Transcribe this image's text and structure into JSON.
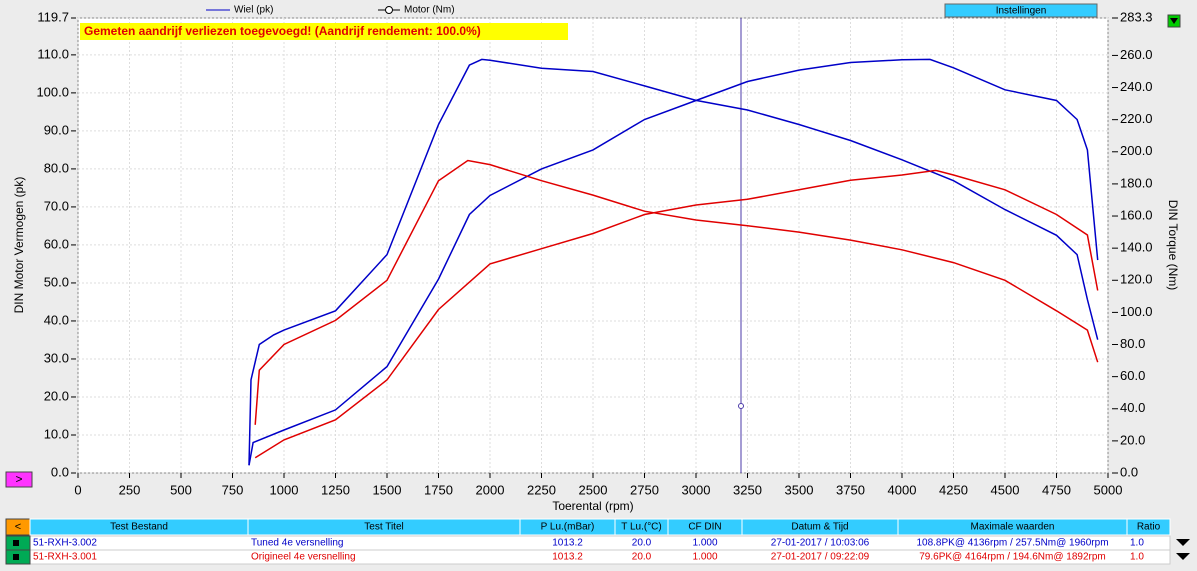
{
  "chart_data": {
    "type": "line",
    "annotation": "Gemeten aandrijf verliezen toegevoegd! (Aandrijf rendement: 100.0%)",
    "legend": [
      "Wiel (pk)",
      "Motor (Nm)"
    ],
    "xlabel": "Toerental (rpm)",
    "ylabel": "DIN Motor Vermogen (pk)",
    "y2label": "DIN Torque (Nm)",
    "xlim": [
      0,
      5000
    ],
    "ylim": [
      0,
      119.7
    ],
    "y2lim": [
      0,
      283.3
    ],
    "grid": true,
    "xticks": [
      0,
      250,
      500,
      750,
      1000,
      1250,
      1500,
      1750,
      2000,
      2250,
      2500,
      2750,
      3000,
      3250,
      3500,
      3750,
      4000,
      4250,
      4500,
      4750,
      5000
    ],
    "yticks": [
      {
        "value": 0,
        "label": "0.0"
      },
      {
        "value": 10,
        "label": "10.0"
      },
      {
        "value": 20,
        "label": "20.0"
      },
      {
        "value": 30,
        "label": "30.0"
      },
      {
        "value": 40,
        "label": "40.0"
      },
      {
        "value": 50,
        "label": "50.0"
      },
      {
        "value": 60,
        "label": "60.0"
      },
      {
        "value": 70,
        "label": "70.0"
      },
      {
        "value": 80,
        "label": "80.0"
      },
      {
        "value": 90,
        "label": "90.0"
      },
      {
        "value": 100,
        "label": "100.0"
      },
      {
        "value": 110,
        "label": "110.0"
      },
      119.7
    ],
    "y2ticks": [
      {
        "value": 0,
        "label": "0.0"
      },
      {
        "value": 20,
        "label": "20.0"
      },
      {
        "value": 40,
        "label": "40.0"
      },
      {
        "value": 60,
        "label": "60.0"
      },
      {
        "value": 80,
        "label": "80.0"
      },
      {
        "value": 100,
        "label": "100.0"
      },
      {
        "value": 120,
        "label": "120.0"
      },
      {
        "value": 140,
        "label": "140.0"
      },
      {
        "value": 160,
        "label": "160.0"
      },
      {
        "value": 180,
        "label": "180.0"
      },
      {
        "value": 200,
        "label": "200.0"
      },
      {
        "value": 220,
        "label": "220.0"
      },
      {
        "value": 240,
        "label": "240.0"
      },
      {
        "value": 260,
        "label": "260.0"
      },
      283.3
    ],
    "series": [
      {
        "color": "#0000c8",
        "x": [
          830,
          850,
          1000,
          1250,
          1500,
          1750,
          1900,
          2000,
          2250,
          2500,
          2750,
          3000,
          3250,
          3500,
          3750,
          4000,
          4136,
          4250,
          4500,
          4750,
          4850,
          4900,
          4950
        ],
        "values": [
          2,
          8,
          11.3,
          16.6,
          28,
          51,
          68,
          73,
          80,
          85,
          93,
          98,
          103,
          106,
          108,
          108.7,
          108.8,
          106.6,
          100.8,
          98,
          93,
          85,
          56
        ]
      },
      {
        "color": "#0000c8",
        "axis": "y2",
        "x": [
          830,
          840,
          880,
          950,
          1000,
          1250,
          1500,
          1750,
          1900,
          1960,
          2000,
          2250,
          2500,
          2750,
          3000,
          3250,
          3500,
          3750,
          4000,
          4250,
          4500,
          4750,
          4850,
          4900,
          4950
        ],
        "values": [
          5,
          58,
          80,
          86,
          89,
          101,
          136,
          217,
          254,
          257.5,
          257,
          252,
          250,
          241,
          232,
          226,
          217,
          207,
          195,
          182,
          164,
          148,
          136,
          108,
          83
        ]
      },
      {
        "color": "#e00000",
        "x": [
          860,
          1000,
          1250,
          1500,
          1750,
          2000,
          2250,
          2500,
          2750,
          3000,
          3250,
          3500,
          3750,
          4000,
          4164,
          4250,
          4500,
          4750,
          4900,
          4950
        ],
        "values": [
          4,
          8.7,
          14,
          24.5,
          43,
          55,
          59,
          63,
          68,
          70.5,
          72,
          74.5,
          77,
          78.4,
          79.6,
          78.4,
          74.5,
          68,
          62.6,
          48
        ]
      },
      {
        "color": "#e00000",
        "axis": "y2",
        "x": [
          860,
          880,
          1000,
          1250,
          1500,
          1750,
          1892,
          2000,
          2250,
          2500,
          2750,
          3000,
          3250,
          3500,
          3750,
          4000,
          4250,
          4500,
          4750,
          4900,
          4950
        ],
        "values": [
          30,
          64,
          80,
          95,
          120,
          182,
          194.6,
          192,
          182,
          173,
          163,
          157.5,
          154,
          150,
          145,
          139,
          131,
          120,
          101,
          89,
          69
        ]
      }
    ]
  },
  "settings_button": "Instellingen",
  "prev_button": ">",
  "table": {
    "toggle": "<",
    "header": [
      "Test Bestand",
      "Test Titel",
      "P Lu.(mBar)",
      "T Lu.(°C)",
      "CF DIN",
      "Datum & Tijd",
      "Maximale waarden",
      "Ratio"
    ],
    "row_colors": [
      "#0000c8",
      "#e00000"
    ],
    "rows": [
      [
        "51-RXH-3.002",
        "Tuned 4e versnelling",
        "1013.2",
        "20.0",
        "1.000",
        "27-01-2017 / 10:03:06",
        "108.8PK@ 4136rpm / 257.5Nm@ 1960rpm",
        "1.0"
      ],
      [
        "51-RXH-3.001",
        "Origineel 4e versnelling",
        "1013.2",
        "20.0",
        "1.000",
        "27-01-2017 / 09:22:09",
        "79.6PK@ 4164rpm / 194.6Nm@ 1892rpm",
        "1.0"
      ]
    ]
  }
}
